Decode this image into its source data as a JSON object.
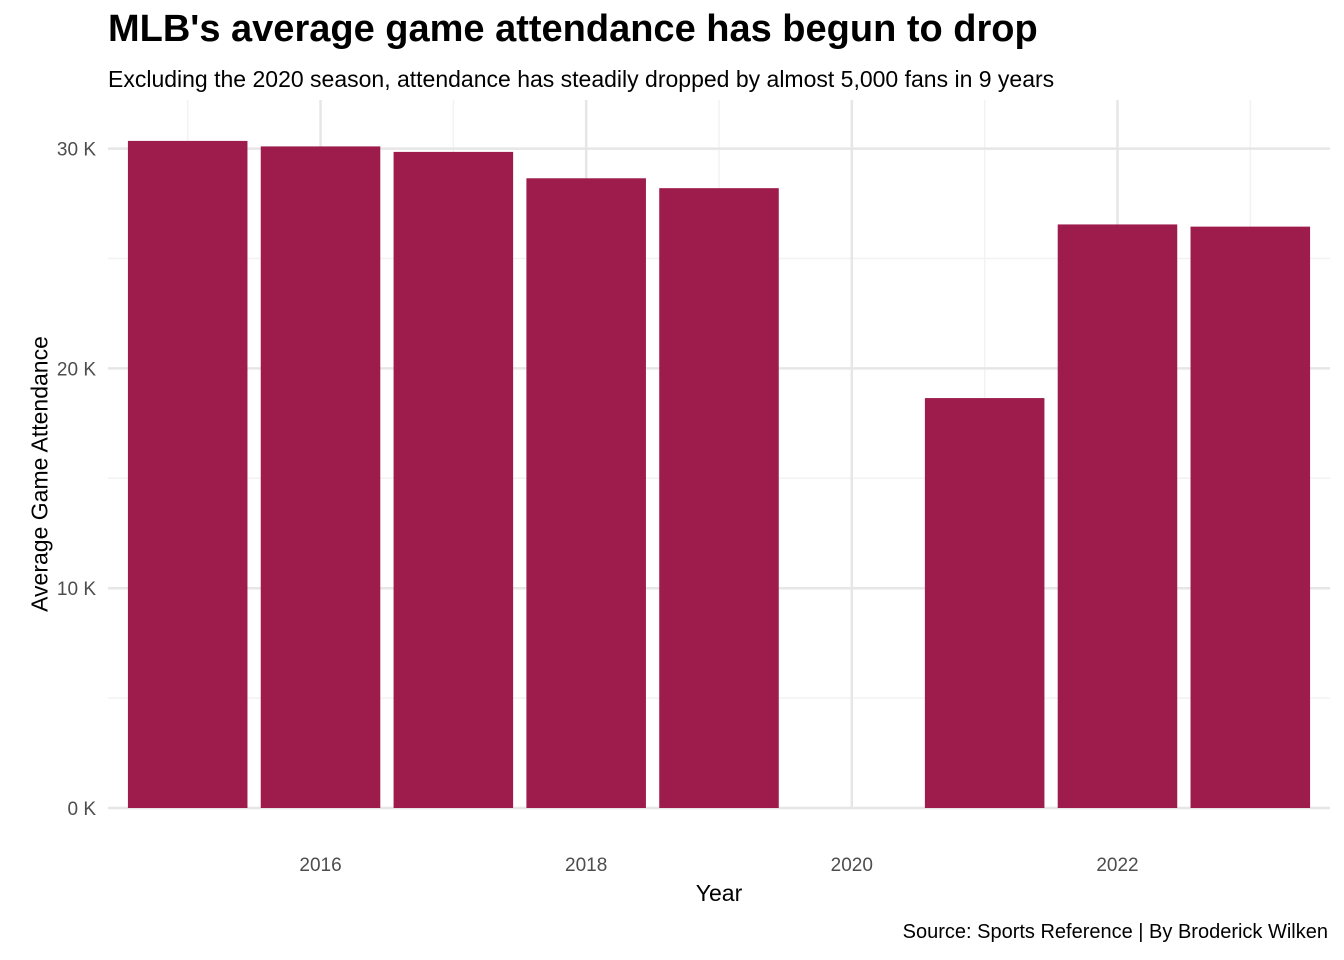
{
  "chart_data": {
    "type": "bar",
    "title": "MLB's average game attendance has begun to drop",
    "subtitle": "Excluding the 2020 season, attendance has steadily dropped by almost 5,000 fans in 9 years",
    "xlabel": "Year",
    "ylabel": "Average Game Attendance",
    "caption": "Source: Sports Reference | By Broderick Wilken",
    "x": [
      2015,
      2016,
      2017,
      2018,
      2019,
      2021,
      2022,
      2023
    ],
    "values": [
      30350,
      30100,
      29850,
      28650,
      28200,
      18650,
      26550,
      26450
    ],
    "xlim": [
      2014.4,
      2023.6
    ],
    "ylim": [
      0,
      32000
    ],
    "x_ticks": [
      2016,
      2018,
      2020,
      2022
    ],
    "x_tick_labels": [
      "2016",
      "2018",
      "2020",
      "2022"
    ],
    "y_ticks": [
      0,
      10000,
      20000,
      30000
    ],
    "y_tick_labels": [
      "0 K",
      "10 K",
      "20 K",
      "30 K"
    ],
    "bar_color": "#9E1C4B",
    "grid": true,
    "legend": "none"
  }
}
